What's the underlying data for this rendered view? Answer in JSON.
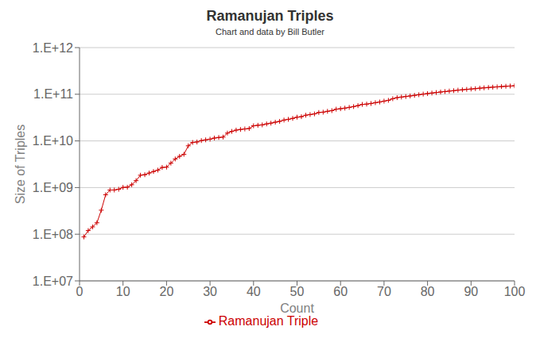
{
  "chart_data": {
    "type": "line",
    "title": "Ramanujan Triples",
    "subtitle": "Chart and data by Bill Butler",
    "xlabel": "Count",
    "ylabel": "Size of Triples",
    "x": [
      1,
      2,
      3,
      4,
      5,
      6,
      7,
      8,
      9,
      10,
      11,
      12,
      13,
      14,
      15,
      16,
      17,
      18,
      19,
      20,
      21,
      22,
      23,
      24,
      25,
      26,
      27,
      28,
      29,
      30,
      31,
      32,
      33,
      34,
      35,
      36,
      37,
      38,
      39,
      40,
      41,
      42,
      43,
      44,
      45,
      46,
      47,
      48,
      49,
      50,
      51,
      52,
      53,
      54,
      55,
      56,
      57,
      58,
      59,
      60,
      61,
      62,
      63,
      64,
      65,
      66,
      67,
      68,
      69,
      70,
      71,
      72,
      73,
      74,
      75,
      76,
      77,
      78,
      79,
      80,
      81,
      82,
      83,
      84,
      85,
      86,
      87,
      88,
      89,
      90,
      91,
      92,
      93,
      94,
      95,
      96,
      97,
      98,
      99,
      100
    ],
    "series": [
      {
        "name": "Ramanujan Triple",
        "color": "#CC0000",
        "marker": "+",
        "values": [
          87539319,
          119824488,
          143604279,
          175959000,
          327763000,
          700695282,
          885623592,
          886867554,
          920673375,
          1009418000,
          1016496000,
          1148834232,
          1407672000,
          1840667192,
          1887463936,
          2048000000,
          2209080000,
          2367990000,
          2705316000,
          2737856000,
          3340091967,
          4101061000,
          4673088000,
          5172024000,
          7845874368,
          9282860000,
          9478200000,
          10165098000,
          10536240000,
          10897016000,
          11519904000,
          11845707000,
          12065328000,
          14710656000,
          16000000000,
          17034000000,
          17592000000,
          18040832000,
          18441312000,
          21086208000,
          21626984000,
          22071000000,
          23149512000,
          24017832000,
          25188000000,
          26250000000,
          28001376000,
          29011968000,
          30397392000,
          32251688000,
          33073920000,
          35539488000,
          36702000000,
          37893048000,
          40700704000,
          41313000000,
          43121000000,
          44532024000,
          47893500000,
          48988800000,
          50456352000,
          52326000000,
          54428000000,
          57093792000,
          60632000000,
          61496000000,
          63345424000,
          65939496000,
          68169024000,
          71344000000,
          74074896000,
          80235000000,
          84604488000,
          87200000000,
          89507000000,
          92000000000,
          94800000000,
          97728000000,
          100760000000,
          103500000000,
          106276000000,
          108900000000,
          111600000000,
          114200000000,
          117000000000,
          119400000000,
          122400000000,
          124800000000,
          127200000000,
          129600000000,
          132000000000,
          135000000000,
          137200000000,
          139600000000,
          142000000000,
          144000000000,
          146200000000,
          148400000000,
          150000000000,
          152000000000
        ]
      }
    ],
    "xlim": [
      0,
      100
    ],
    "xticks": [
      0,
      10,
      20,
      30,
      40,
      50,
      60,
      70,
      80,
      90,
      100
    ],
    "ylim": [
      10000000,
      1000000000000
    ],
    "yticks": [
      {
        "value": 10000000,
        "label": "1.E+07"
      },
      {
        "value": 100000000,
        "label": "1.E+08"
      },
      {
        "value": 1000000000,
        "label": "1.E+09"
      },
      {
        "value": 10000000000,
        "label": "1.E+10"
      },
      {
        "value": 100000000000,
        "label": "1.E+11"
      },
      {
        "value": 1000000000000,
        "label": "1.E+12"
      }
    ],
    "log": "y",
    "grid": "y",
    "legend": "bottom"
  }
}
